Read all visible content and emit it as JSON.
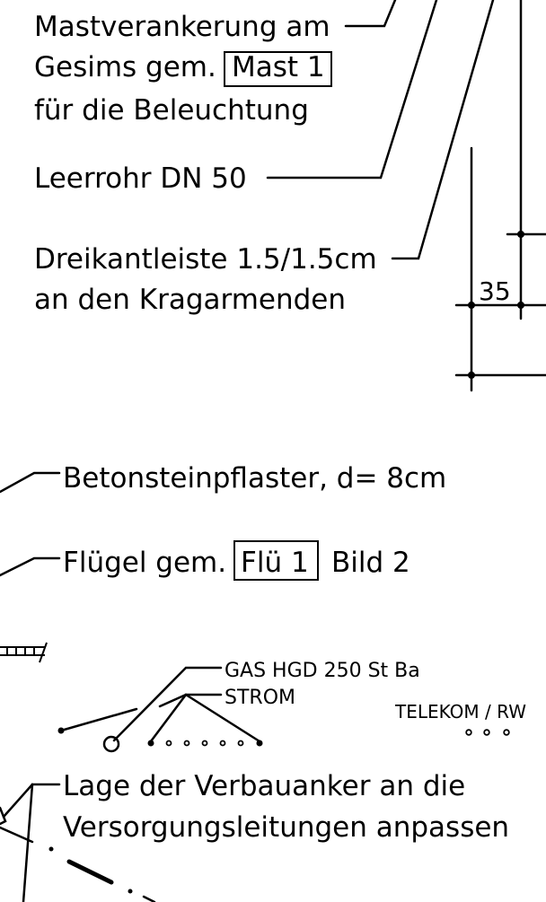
{
  "annotations": {
    "mast_line1": "Mastverankerung am",
    "mast_line2_prefix": "Gesims gem.",
    "mast_ref": "Mast 1",
    "mast_line3": "für die Beleuchtung",
    "leerrohr": "Leerrohr DN 50",
    "dreikant_line1": "Dreikantleiste 1.5/1.5cm",
    "dreikant_line2": "an den Kragarmenden",
    "dimension": "35",
    "pflaster": "Betonsteinpflaster, d= 8cm",
    "fluegel_prefix": "Flügel gem.",
    "fluegel_ref": "Flü 1",
    "fluegel_suffix": "Bild 2",
    "verbau_line1": "Lage der Verbauanker an die",
    "verbau_line2": "Versorgungsleitungen anpassen"
  },
  "utilities": {
    "gas": "GAS HGD 250 St Ba",
    "strom": "STROM",
    "telekom": "TELEKOM / RW"
  }
}
